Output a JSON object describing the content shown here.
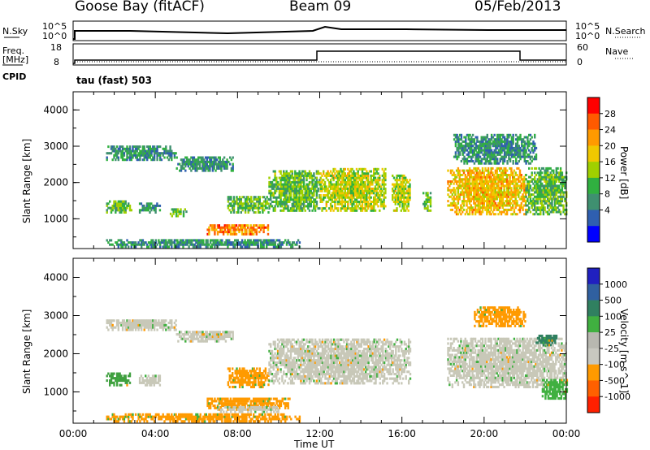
{
  "header": {
    "station": "Goose Bay (fitACF)",
    "beam": "Beam 09",
    "date": "05/Feb/2013"
  },
  "top_panels": {
    "nsky_label": "N.Sky",
    "nsearch_label": "N.Search",
    "nsky_ticks": [
      "10^5",
      "10^0"
    ],
    "nsearch_ticks": [
      "10^5",
      "10^0"
    ],
    "freq_label": "Freq.",
    "freq_unit": "[MHz]",
    "freq_ticks": [
      "18",
      "8"
    ],
    "nave_label": "Nave",
    "nave_ticks": [
      "60",
      "0"
    ],
    "cpid_label": "CPID",
    "cpid_value": "tau (fast) 503"
  },
  "chart_data": [
    {
      "type": "heatmap",
      "name": "power",
      "ylabel": "Slant Range [km]",
      "ylim": [
        180,
        4500
      ],
      "yticks": [
        "4000",
        "3000",
        "2000",
        "1000"
      ],
      "xlim_hours": [
        0,
        24
      ],
      "colorbar_label": "Power [dB]",
      "colorbar_ticks": [
        "28",
        "24",
        "20",
        "16",
        "12",
        "8",
        "4"
      ],
      "colorbar_colors": [
        "#ff0000",
        "#ff5a00",
        "#ff9a00",
        "#f0c800",
        "#a0d000",
        "#30b040",
        "#3f9070",
        "#2f5fb0",
        "#0000ff"
      ],
      "regions": [
        {
          "t0": 1.6,
          "t1": 5.0,
          "r0": 2600,
          "r1": 3000,
          "level": 8
        },
        {
          "t0": 5.0,
          "t1": 7.8,
          "r0": 2300,
          "r1": 2700,
          "level": 8
        },
        {
          "t0": 1.6,
          "t1": 2.8,
          "r0": 1150,
          "r1": 1500,
          "level": 12
        },
        {
          "t0": 3.2,
          "t1": 4.2,
          "r0": 1150,
          "r1": 1400,
          "level": 8
        },
        {
          "t0": 4.7,
          "t1": 5.5,
          "r0": 1050,
          "r1": 1250,
          "level": 12
        },
        {
          "t0": 7.5,
          "t1": 9.5,
          "r0": 1150,
          "r1": 1600,
          "level": 12
        },
        {
          "t0": 6.5,
          "t1": 9.5,
          "r0": 550,
          "r1": 850,
          "level": 24
        },
        {
          "t0": 9.5,
          "t1": 12.0,
          "r0": 1200,
          "r1": 2300,
          "level": 12
        },
        {
          "t0": 12.0,
          "t1": 15.2,
          "r0": 1200,
          "r1": 2400,
          "level": 16
        },
        {
          "t0": 15.5,
          "t1": 16.4,
          "r0": 1200,
          "r1": 2200,
          "level": 16
        },
        {
          "t0": 17.0,
          "t1": 17.4,
          "r0": 1200,
          "r1": 1700,
          "level": 12
        },
        {
          "t0": 18.2,
          "t1": 22.0,
          "r0": 1100,
          "r1": 2400,
          "level": 20
        },
        {
          "t0": 22.0,
          "t1": 24.0,
          "r0": 1100,
          "r1": 2400,
          "level": 12
        },
        {
          "t0": 18.5,
          "t1": 22.5,
          "r0": 2500,
          "r1": 3300,
          "level": 8
        },
        {
          "t0": 1.6,
          "t1": 11.0,
          "r0": 200,
          "r1": 400,
          "level": 8
        }
      ]
    },
    {
      "type": "heatmap",
      "name": "velocity",
      "ylabel": "Slant Range [km]",
      "ylim": [
        180,
        4500
      ],
      "yticks": [
        "4000",
        "3000",
        "2000",
        "1000"
      ],
      "xlim_hours": [
        0,
        24
      ],
      "xticks": [
        "00:00",
        "04:00",
        "08:00",
        "12:00",
        "16:00",
        "20:00",
        "00:00"
      ],
      "xlabel": "Time UT",
      "colorbar_label": "Velocity [m s^-1]",
      "colorbar_ticks": [
        "1000",
        "500",
        "100",
        "25",
        "-25",
        "-100",
        "-500",
        "-1000"
      ],
      "colorbar_colors": [
        "#2020c0",
        "#3060a0",
        "#308060",
        "#40b040",
        "#b8b8b0",
        "#c8c8c0",
        "#ff9a00",
        "#ff6000",
        "#ff2000"
      ],
      "regions": [
        {
          "t0": 1.6,
          "t1": 5.0,
          "r0": 2600,
          "r1": 2900,
          "color": "#c8c8b8"
        },
        {
          "t0": 5.0,
          "t1": 7.8,
          "r0": 2300,
          "r1": 2600,
          "color": "#c8c8b8"
        },
        {
          "t0": 1.6,
          "t1": 2.8,
          "r0": 1150,
          "r1": 1500,
          "color": "#40a040"
        },
        {
          "t0": 3.2,
          "t1": 4.2,
          "r0": 1150,
          "r1": 1400,
          "color": "#c8c8b8"
        },
        {
          "t0": 7.5,
          "t1": 9.5,
          "r0": 1100,
          "r1": 1600,
          "color": "#ff9a00"
        },
        {
          "t0": 6.5,
          "t1": 10.5,
          "r0": 550,
          "r1": 850,
          "color": "#ff9a00"
        },
        {
          "t0": 7.0,
          "t1": 10.0,
          "r0": 450,
          "r1": 600,
          "color": "#c8c8b8"
        },
        {
          "t0": 9.5,
          "t1": 16.4,
          "r0": 1200,
          "r1": 2400,
          "color": "#c8c8b8"
        },
        {
          "t0": 18.2,
          "t1": 24.0,
          "r0": 1100,
          "r1": 2400,
          "color": "#c8c8b8"
        },
        {
          "t0": 19.5,
          "t1": 22.0,
          "r0": 2700,
          "r1": 3200,
          "color": "#ff9a00"
        },
        {
          "t0": 22.5,
          "t1": 23.5,
          "r0": 2200,
          "r1": 2500,
          "color": "#308060"
        },
        {
          "t0": 22.8,
          "t1": 24.0,
          "r0": 800,
          "r1": 1300,
          "color": "#40b040"
        },
        {
          "t0": 1.6,
          "t1": 11.0,
          "r0": 200,
          "r1": 400,
          "color": "#ff9a00"
        }
      ]
    }
  ]
}
